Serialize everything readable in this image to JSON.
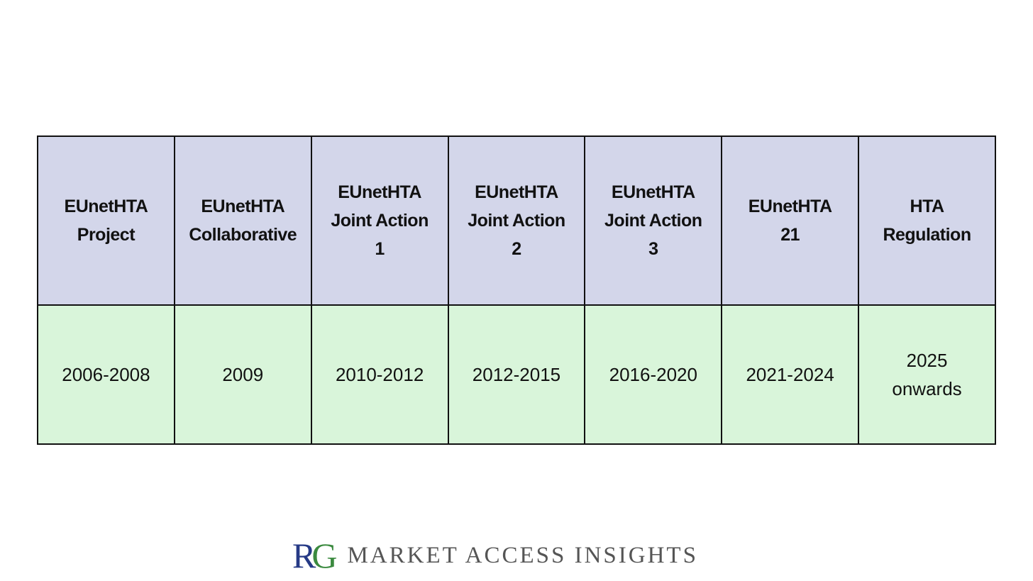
{
  "table": {
    "header": [
      [
        "EUnetHTA",
        "Project"
      ],
      [
        "EUnetHTA",
        "Collaborative"
      ],
      [
        "EUnetHTA",
        "Joint Action",
        "1"
      ],
      [
        "EUnetHTA",
        "Joint Action",
        "2"
      ],
      [
        "EUnetHTA",
        "Joint Action",
        "3"
      ],
      [
        "EUnetHTA",
        "21"
      ],
      [
        "HTA",
        "Regulation"
      ]
    ],
    "rows": [
      [
        [
          "2006-2008"
        ],
        [
          "2009"
        ],
        [
          "2010-2012"
        ],
        [
          "2012-2015"
        ],
        [
          "2016-2020"
        ],
        [
          "2021-2024"
        ],
        [
          "2025",
          "onwards"
        ]
      ]
    ]
  },
  "logo": {
    "mark": [
      "R",
      "G"
    ],
    "text": "MARKET ACCESS INSIGHTS"
  }
}
